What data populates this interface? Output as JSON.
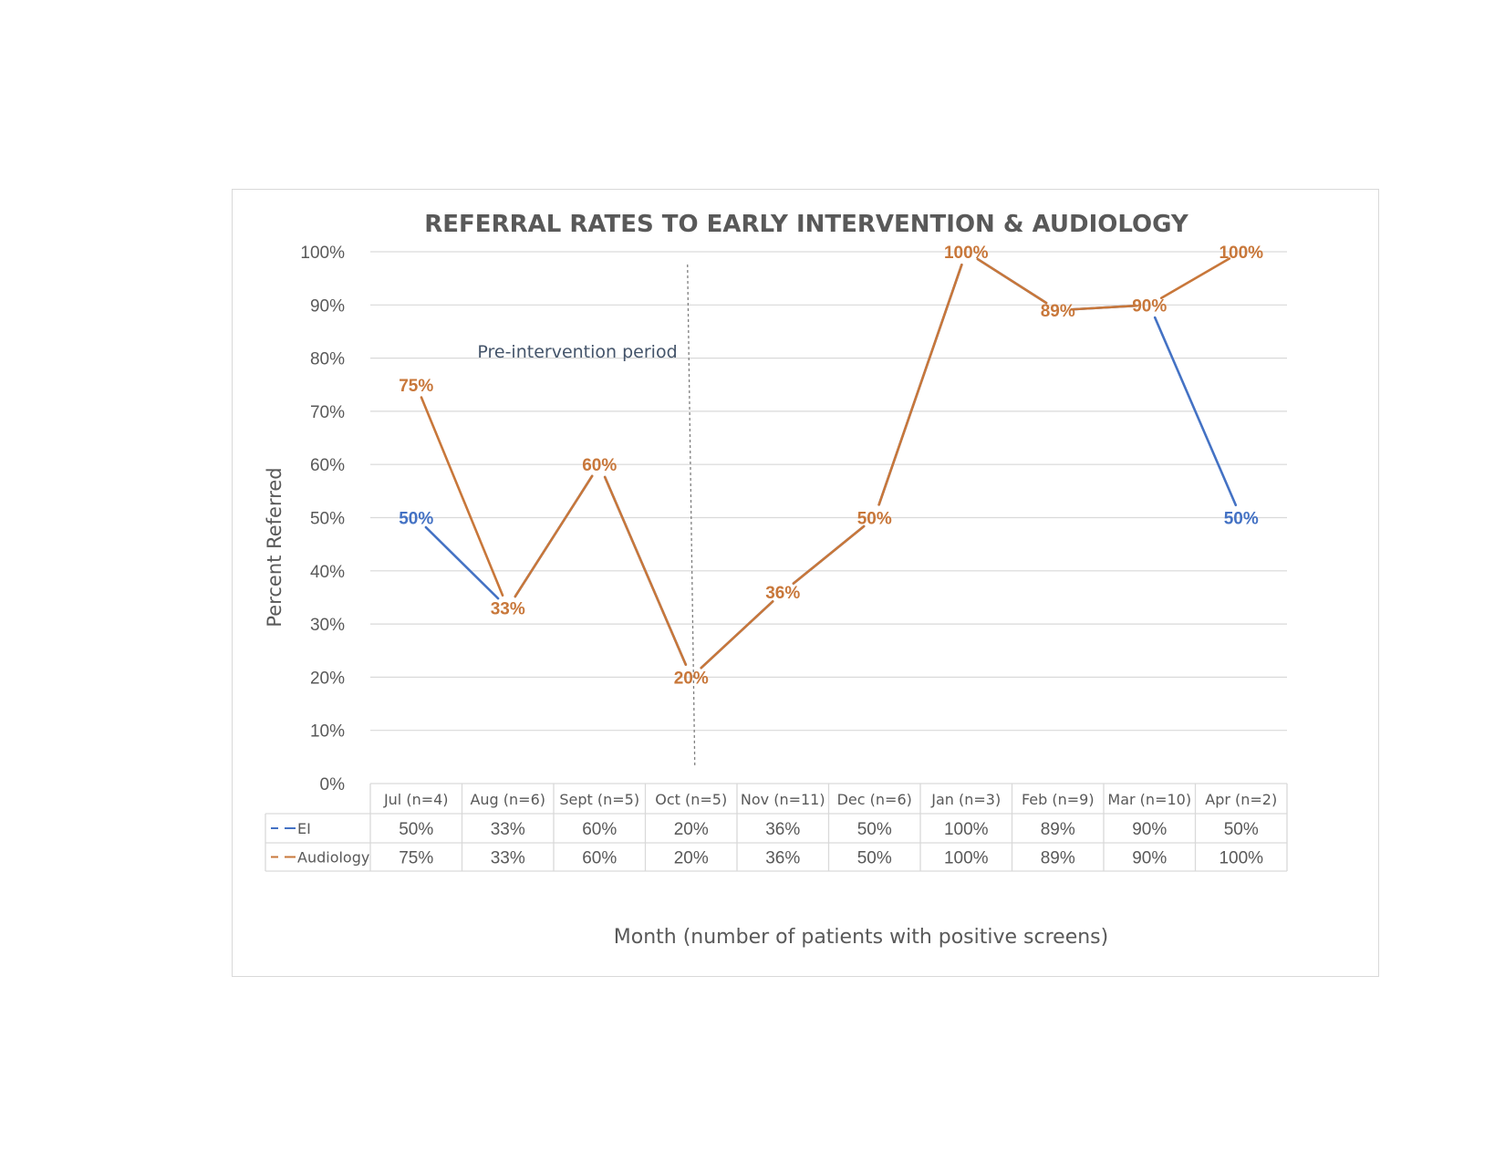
{
  "chart_data": {
    "type": "line",
    "title": "REFERRAL RATES TO EARLY INTERVENTION & AUDIOLOGY",
    "ylabel": "Percent Referred",
    "xlabel": "Month (number of patients with positive screens)",
    "ylim": [
      0,
      100
    ],
    "yticks": [
      "0%",
      "10%",
      "20%",
      "30%",
      "40%",
      "50%",
      "60%",
      "70%",
      "80%",
      "90%",
      "100%"
    ],
    "grid": true,
    "annotation": "Pre-intervention period",
    "categories": [
      "Jul (n=4)",
      "Aug (n=6)",
      "Sept (n=5)",
      "Oct (n=5)",
      "Nov (n=11)",
      "Dec (n=6)",
      "Jan (n=3)",
      "Feb (n=9)",
      "Mar (n=10)",
      "Apr (n=2)"
    ],
    "series": [
      {
        "name": "EI",
        "color": "#4472c4",
        "values": [
          50,
          33,
          60,
          20,
          36,
          50,
          100,
          89,
          90,
          50
        ],
        "labels": [
          "50%",
          "33%",
          "60%",
          "20%",
          "36%",
          "50%",
          "100%",
          "89%",
          "90%",
          "50%"
        ]
      },
      {
        "name": "Audiology",
        "color": "#c8773a",
        "values": [
          75,
          33,
          60,
          20,
          36,
          50,
          100,
          89,
          90,
          100
        ],
        "labels": [
          "75%",
          "33%",
          "60%",
          "20%",
          "36%",
          "50%",
          "100%",
          "89%",
          "90%",
          "100%"
        ]
      }
    ],
    "legend_position": "bottom (data table)"
  }
}
